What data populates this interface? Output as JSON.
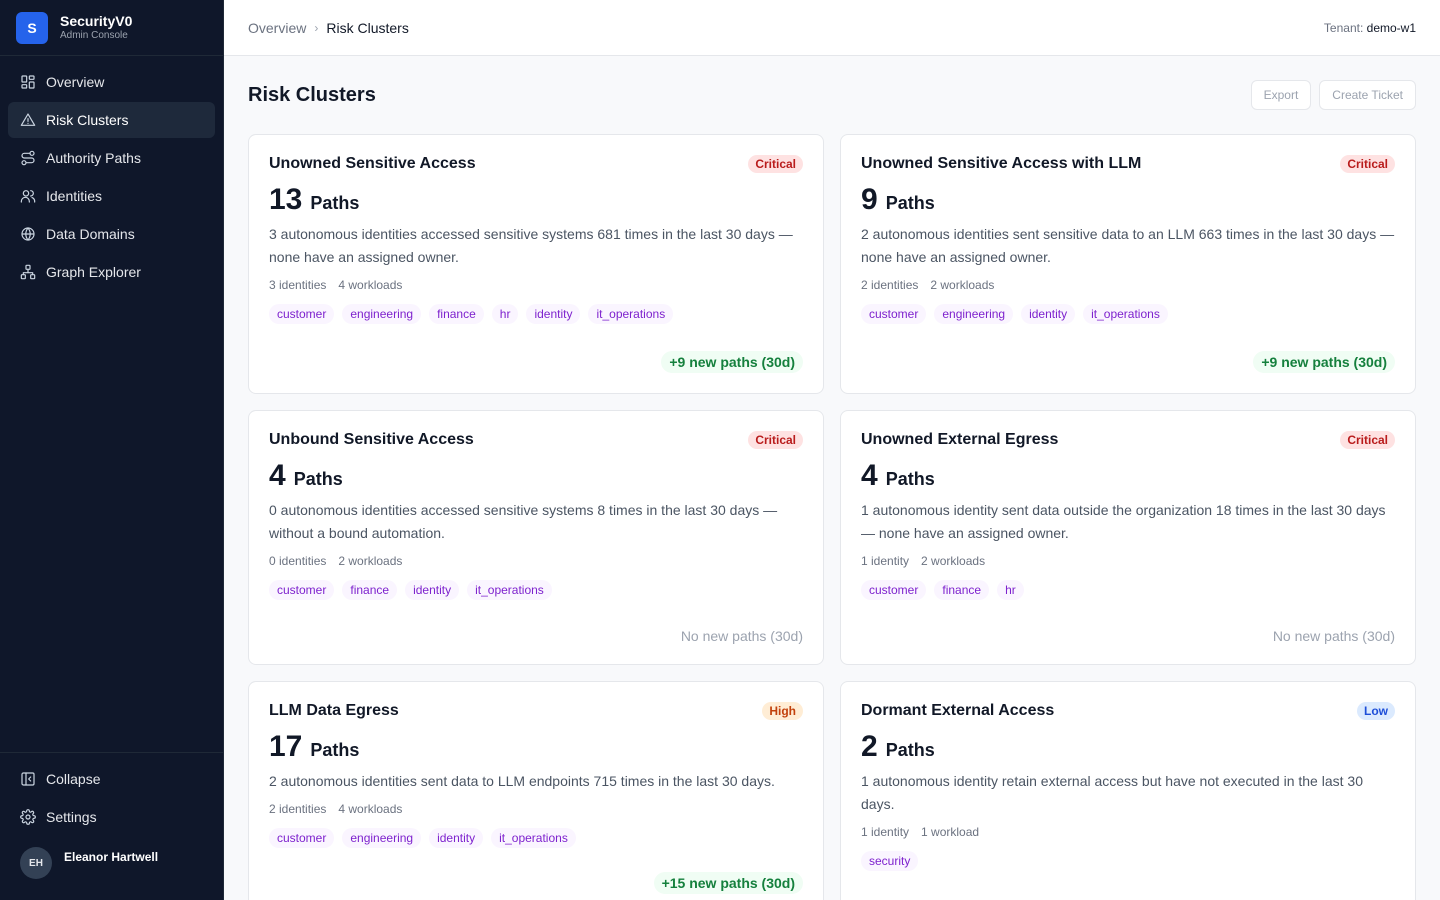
{
  "brand": {
    "logo_letter": "S",
    "name": "SecurityV0",
    "subtitle": "Admin Console"
  },
  "nav": [
    {
      "label": "Overview",
      "icon": "grid-icon",
      "active": false
    },
    {
      "label": "Risk Clusters",
      "icon": "warning-triangle-icon",
      "active": true
    },
    {
      "label": "Authority Paths",
      "icon": "route-icon",
      "active": false
    },
    {
      "label": "Identities",
      "icon": "users-icon",
      "active": false
    },
    {
      "label": "Data Domains",
      "icon": "globe-icon",
      "active": false
    },
    {
      "label": "Graph Explorer",
      "icon": "network-icon",
      "active": false
    }
  ],
  "sidebar_bottom": {
    "collapse_label": "Collapse",
    "settings_label": "Settings",
    "user": {
      "initials": "EH",
      "name": "Eleanor Hartwell"
    }
  },
  "breadcrumb": {
    "root": "Overview",
    "separator": "›",
    "current": "Risk Clusters"
  },
  "tenant": {
    "label": "Tenant:",
    "value": "demo-w1"
  },
  "page": {
    "title": "Risk Clusters",
    "export_label": "Export",
    "create_ticket_label": "Create Ticket"
  },
  "cards": [
    {
      "title": "Unowned Sensitive Access",
      "severity": "Critical",
      "count": "13",
      "count_label": "Paths",
      "description": "3 autonomous identities accessed sensitive systems 681 times in the last 30 days — none have an assigned owner.",
      "identities": "3 identities",
      "workloads": "4 workloads",
      "tags": [
        "customer",
        "engineering",
        "finance",
        "hr",
        "identity",
        "it_operations"
      ],
      "trend": "+9 new paths (30d)"
    },
    {
      "title": "Unowned Sensitive Access with LLM",
      "severity": "Critical",
      "count": "9",
      "count_label": "Paths",
      "description": "2 autonomous identities sent sensitive data to an LLM 663 times in the last 30 days — none have an assigned owner.",
      "identities": "2 identities",
      "workloads": "2 workloads",
      "tags": [
        "customer",
        "engineering",
        "identity",
        "it_operations"
      ],
      "trend": "+9 new paths (30d)"
    },
    {
      "title": "Unbound Sensitive Access",
      "severity": "Critical",
      "count": "4",
      "count_label": "Paths",
      "description": "0 autonomous identities accessed sensitive systems 8 times in the last 30 days — without a bound automation.",
      "identities": "0 identities",
      "workloads": "2 workloads",
      "tags": [
        "customer",
        "finance",
        "identity",
        "it_operations"
      ],
      "trend": "No new paths (30d)"
    },
    {
      "title": "Unowned External Egress",
      "severity": "Critical",
      "count": "4",
      "count_label": "Paths",
      "description": "1 autonomous identity sent data outside the organization 18 times in the last 30 days — none have an assigned owner.",
      "identities": "1 identity",
      "workloads": "2 workloads",
      "tags": [
        "customer",
        "finance",
        "hr"
      ],
      "trend": "No new paths (30d)"
    },
    {
      "title": "LLM Data Egress",
      "severity": "High",
      "count": "17",
      "count_label": "Paths",
      "description": "2 autonomous identities sent data to LLM endpoints 715 times in the last 30 days.",
      "identities": "2 identities",
      "workloads": "4 workloads",
      "tags": [
        "customer",
        "engineering",
        "identity",
        "it_operations"
      ],
      "trend": "+15 new paths (30d)"
    },
    {
      "title": "Dormant External Access",
      "severity": "Low",
      "count": "2",
      "count_label": "Paths",
      "description": "1 autonomous identity retain external access but have not executed in the last 30 days.",
      "identities": "1 identity",
      "workloads": "1 workload",
      "tags": [
        "security"
      ],
      "trend": ""
    }
  ]
}
